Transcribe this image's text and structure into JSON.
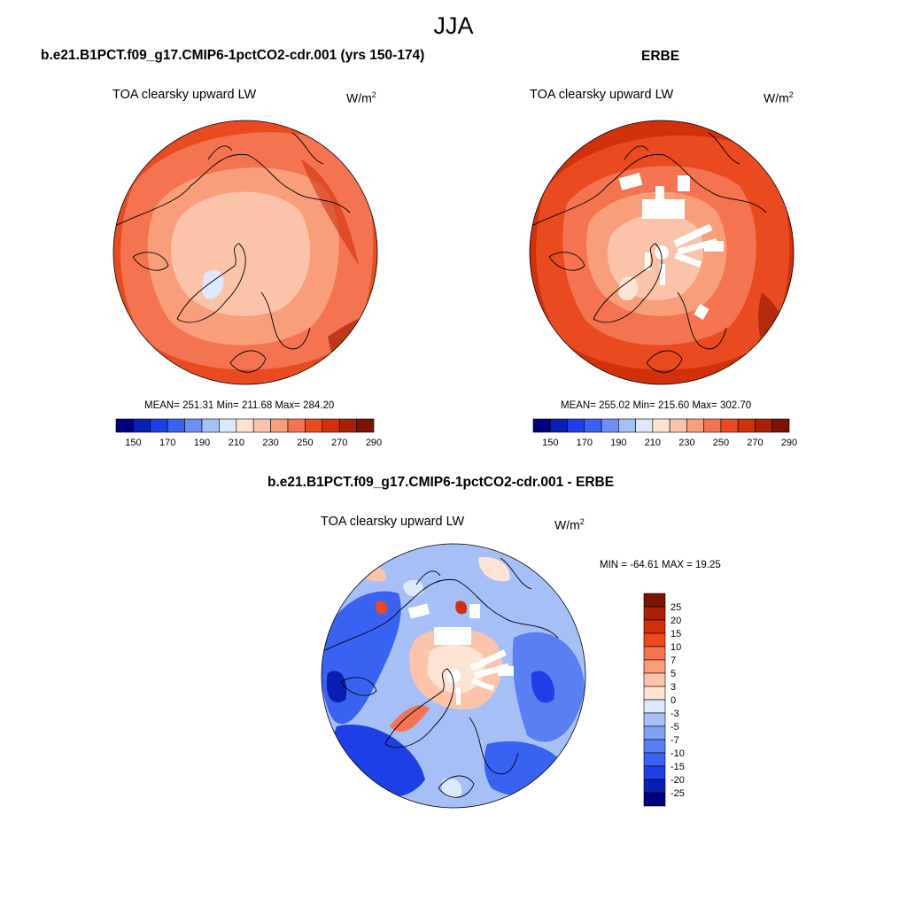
{
  "header": {
    "title": "JJA",
    "left_case": "b.e21.B1PCT.f09_g17.CMIP6-1pctCO2-cdr.001 (yrs 150-174)",
    "right_case": "ERBE",
    "diff_case": "b.e21.B1PCT.f09_g17.CMIP6-1pctCO2-cdr.001 - ERBE"
  },
  "chart_data": [
    {
      "type": "heatmap",
      "projection": "north-polar-stereographic",
      "variable": "TOA clearsky upward LW",
      "units_base": "W/m",
      "units_exp": "2",
      "stats_text": "MEAN= 251.31  Min= 211.68  Max= 284.20",
      "mean": 251.31,
      "min": 211.68,
      "max": 284.2,
      "colorbar": {
        "orientation": "horizontal",
        "tick_labels": [
          "150",
          "170",
          "190",
          "210",
          "230",
          "250",
          "270",
          "290"
        ],
        "colors": [
          "#00007f",
          "#0a1eb4",
          "#1f3fe6",
          "#3a62f2",
          "#6c8ff5",
          "#a6c0f7",
          "#dde8fa",
          "#fde3d3",
          "#fbc4aa",
          "#f89e7b",
          "#f47350",
          "#ea4a20",
          "#d1300b",
          "#a82008",
          "#7c1200"
        ]
      }
    },
    {
      "type": "heatmap",
      "projection": "north-polar-stereographic",
      "variable": "TOA clearsky upward LW",
      "units_base": "W/m",
      "units_exp": "2",
      "stats_text": "MEAN= 255.02  Min= 215.60  Max= 302.70",
      "mean": 255.02,
      "min": 215.6,
      "max": 302.7,
      "colorbar": {
        "orientation": "horizontal",
        "tick_labels": [
          "150",
          "170",
          "190",
          "210",
          "230",
          "250",
          "270",
          "290"
        ],
        "colors": [
          "#00007f",
          "#0a1eb4",
          "#1f3fe6",
          "#3a62f2",
          "#6c8ff5",
          "#a6c0f7",
          "#dde8fa",
          "#fde3d3",
          "#fbc4aa",
          "#f89e7b",
          "#f47350",
          "#ea4a20",
          "#d1300b",
          "#a82008",
          "#7c1200"
        ]
      }
    },
    {
      "type": "heatmap",
      "projection": "north-polar-stereographic",
      "variable": "TOA clearsky upward LW",
      "units_base": "W/m",
      "units_exp": "2",
      "stats_text": "MIN = -64.61 MAX =  19.25",
      "min": -64.61,
      "max": 19.25,
      "colorbar": {
        "orientation": "vertical",
        "tick_labels": [
          "25",
          "20",
          "15",
          "10",
          "7",
          "5",
          "3",
          "0",
          "-3",
          "-5",
          "-7",
          "-10",
          "-15",
          "-20",
          "-25"
        ],
        "colors": [
          "#7c1200",
          "#a82008",
          "#d1300b",
          "#ee4a1e",
          "#f47350",
          "#f89e7b",
          "#fbc4aa",
          "#fde3d3",
          "#dde8fa",
          "#a6c0f7",
          "#7fa0f4",
          "#5a7ff2",
          "#3a62f2",
          "#1f3fe6",
          "#0a1eb4",
          "#00007f"
        ]
      }
    }
  ]
}
